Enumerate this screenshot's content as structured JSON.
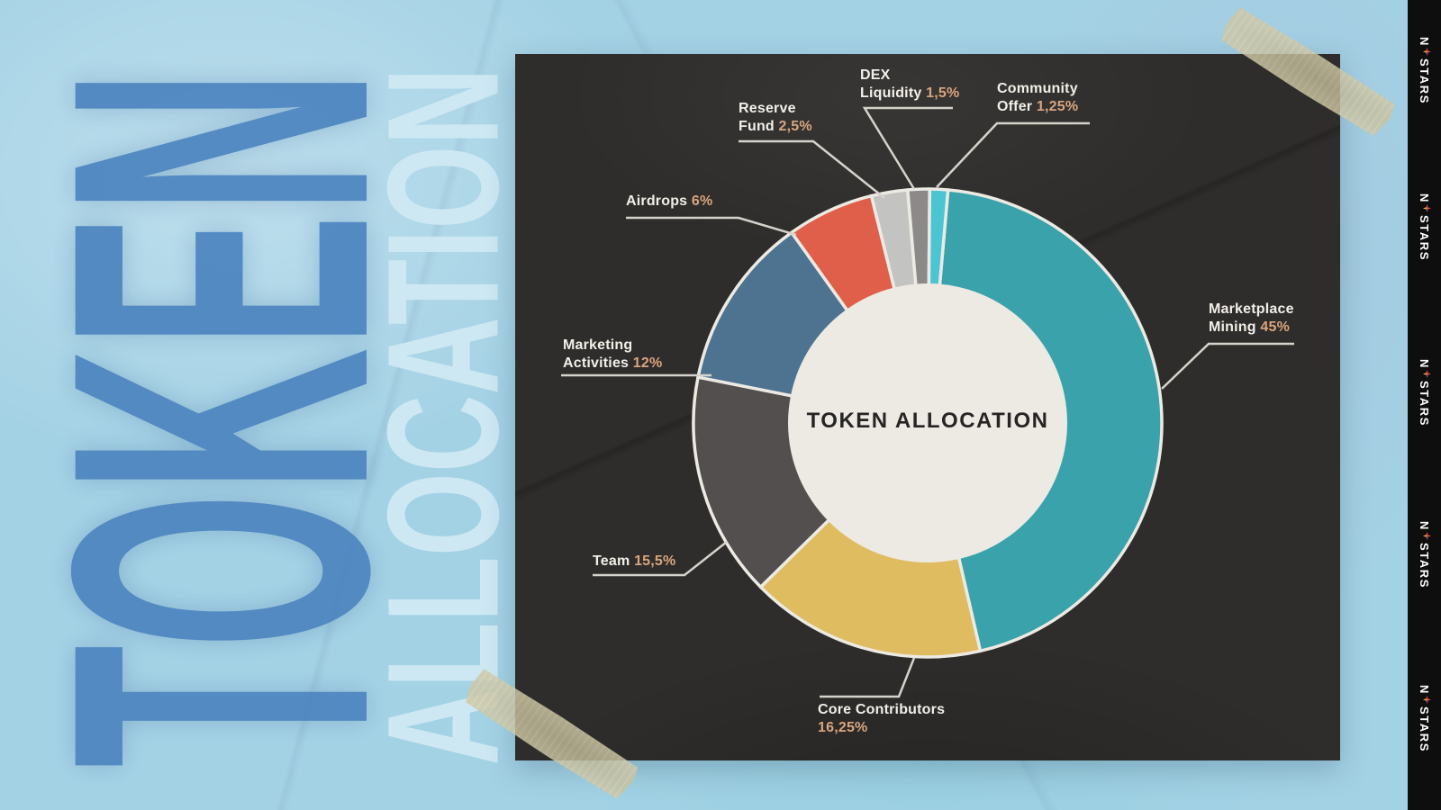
{
  "banner": {
    "word1": "TOKEN",
    "word2": "ALLOCATION"
  },
  "brand": {
    "prefix": "N",
    "suffix": "STARS",
    "logo_repeat_count": 5
  },
  "palette": {
    "background": "#a4d2e5",
    "card": "#2f2d2b",
    "strip": "#0e0e0e",
    "tape": "#cec7a4",
    "token_word": "#4d85c0",
    "allocation_word": "#cfe9f4",
    "label_text": "#f2efe9",
    "percent_text": "#d9a57f",
    "leader_line": "#d6d3cc",
    "separator": "#eceae3",
    "hole": "#edeae4",
    "title_text": "#272524"
  },
  "chart_data": {
    "type": "pie",
    "donut": true,
    "title": "TOKEN ALLOCATION",
    "start_angle_deg": 5,
    "outer_radius_px": 260,
    "hole_radius_px": 155,
    "legend": "none",
    "slices": [
      {
        "name": "Marketplace Mining",
        "value": 45,
        "label_text": "Marketplace\nMining ",
        "pct_text": "45%",
        "color": "#3aa2ab"
      },
      {
        "name": "Core Contributors",
        "value": 16.25,
        "label_text": "Core Contributors\n",
        "pct_text": "16,25%",
        "color": "#dfbc60"
      },
      {
        "name": "Team",
        "value": 15.5,
        "label_text": "Team ",
        "pct_text": "15,5%",
        "color": "#524f4e"
      },
      {
        "name": "Marketing Activities",
        "value": 12,
        "label_text": "Marketing\nActivities ",
        "pct_text": "12%",
        "color": "#4e7391"
      },
      {
        "name": "Airdrops",
        "value": 6,
        "label_text": "Airdrops ",
        "pct_text": "6%",
        "color": "#df5f4a"
      },
      {
        "name": "Reserve Fund",
        "value": 2.5,
        "label_text": "Reserve\nFund ",
        "pct_text": "2,5%",
        "color": "#c3c3c1"
      },
      {
        "name": "DEX Liquidity",
        "value": 1.5,
        "label_text": "DEX\nLiquidity ",
        "pct_text": "1,5%",
        "color": "#8c8a89"
      },
      {
        "name": "Community Offer",
        "value": 1.25,
        "label_text": "Community\nOffer ",
        "pct_text": "1,25%",
        "color": "#4cc5d3"
      }
    ]
  }
}
